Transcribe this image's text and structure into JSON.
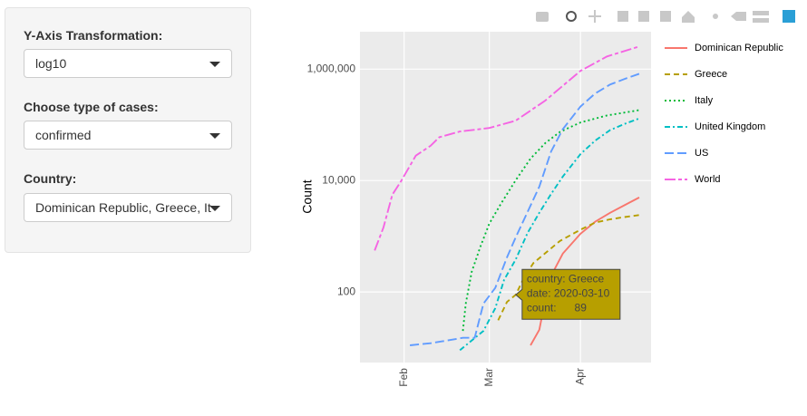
{
  "sidebar": {
    "inputs": [
      {
        "label": "Y-Axis Transformation:",
        "value": "log10"
      },
      {
        "label": "Choose type of cases:",
        "value": "confirmed"
      },
      {
        "label": "Country:",
        "value": "Dominican Republic, Greece, It"
      }
    ]
  },
  "chart_data": {
    "type": "line",
    "y_label": "Count",
    "log_y": true,
    "grid": true,
    "ylim": [
      5.4,
      4700000
    ],
    "yticks": [
      {
        "value": 100,
        "label": "100"
      },
      {
        "value": 10000,
        "label": "10,000"
      },
      {
        "value": 1000000,
        "label": "1,000,000"
      }
    ],
    "xlim": [
      "2020-01-17",
      "2020-04-25"
    ],
    "xticks": [
      {
        "value": "2020-02-01",
        "label": "Feb"
      },
      {
        "value": "2020-03-01",
        "label": "Mar"
      },
      {
        "value": "2020-04-01",
        "label": "Apr"
      }
    ],
    "series": [
      {
        "name": "Dominican Republic",
        "color": "#F8766D",
        "dash": "solid",
        "x": [
          "2020-03-15",
          "2020-03-18",
          "2020-03-20",
          "2020-03-23",
          "2020-03-26",
          "2020-04-01",
          "2020-04-06",
          "2020-04-11",
          "2020-04-16",
          "2020-04-21"
        ],
        "values": [
          11,
          21,
          72,
          245,
          488,
          1109,
          1828,
          2620,
          3614,
          4964
        ]
      },
      {
        "name": "Greece",
        "color": "#B79F00",
        "dash": "dash",
        "x": [
          "2020-03-04",
          "2020-03-07",
          "2020-03-10",
          "2020-03-13",
          "2020-03-16",
          "2020-03-20",
          "2020-03-25",
          "2020-04-01",
          "2020-04-06",
          "2020-04-11",
          "2020-04-16",
          "2020-04-21"
        ],
        "values": [
          31,
          66,
          89,
          190,
          331,
          495,
          821,
          1314,
          1755,
          2011,
          2207,
          2401
        ]
      },
      {
        "name": "Italy",
        "color": "#00BA38",
        "dash": "dot",
        "x": [
          "2020-02-21",
          "2020-02-22",
          "2020-02-24",
          "2020-02-27",
          "2020-03-01",
          "2020-03-05",
          "2020-03-10",
          "2020-03-15",
          "2020-03-20",
          "2020-03-25",
          "2020-04-01",
          "2020-04-10",
          "2020-04-21"
        ],
        "values": [
          20,
          62,
          229,
          655,
          1694,
          3858,
          10149,
          24747,
          47021,
          74386,
          110574,
          147577,
          183957
        ]
      },
      {
        "name": "United Kingdom",
        "color": "#00BFC4",
        "dash": "dashdot",
        "x": [
          "2020-02-20",
          "2020-02-28",
          "2020-03-03",
          "2020-03-06",
          "2020-03-10",
          "2020-03-14",
          "2020-03-18",
          "2020-03-22",
          "2020-03-26",
          "2020-04-01",
          "2020-04-06",
          "2020-04-11",
          "2020-04-16",
          "2020-04-21"
        ],
        "values": [
          9,
          20,
          51,
          164,
          384,
          1144,
          2642,
          5741,
          11812,
          29865,
          52279,
          79874,
          104145,
          130172
        ]
      },
      {
        "name": "US",
        "color": "#619CFF",
        "dash": "longdash",
        "x": [
          "2020-02-03",
          "2020-02-10",
          "2020-02-14",
          "2020-02-21",
          "2020-02-25",
          "2020-02-28",
          "2020-03-03",
          "2020-03-07",
          "2020-03-10",
          "2020-03-14",
          "2020-03-18",
          "2020-03-22",
          "2020-03-26",
          "2020-04-01",
          "2020-04-06",
          "2020-04-11",
          "2020-04-16",
          "2020-04-21"
        ],
        "values": [
          11,
          12,
          13,
          15,
          15,
          62,
          118,
          417,
          959,
          2727,
          7786,
          33272,
          83836,
          213372,
          366667,
          526396,
          667592,
          825041
        ]
      },
      {
        "name": "World",
        "color": "#F564E3",
        "dash": "twodash",
        "x": [
          "2020-01-22",
          "2020-01-25",
          "2020-01-28",
          "2020-01-31",
          "2020-02-05",
          "2020-02-10",
          "2020-02-13",
          "2020-02-20",
          "2020-03-01",
          "2020-03-10",
          "2020-03-20",
          "2020-04-01",
          "2020-04-10",
          "2020-04-21"
        ],
        "values": [
          555,
          1438,
          5578,
          9800,
          28000,
          42000,
          60000,
          76000,
          88000,
          119000,
          272000,
          932000,
          1690000,
          2550000
        ]
      }
    ],
    "tooltip": [
      "country: Greece",
      "date: 2020-03-10",
      "count:      89"
    ]
  }
}
